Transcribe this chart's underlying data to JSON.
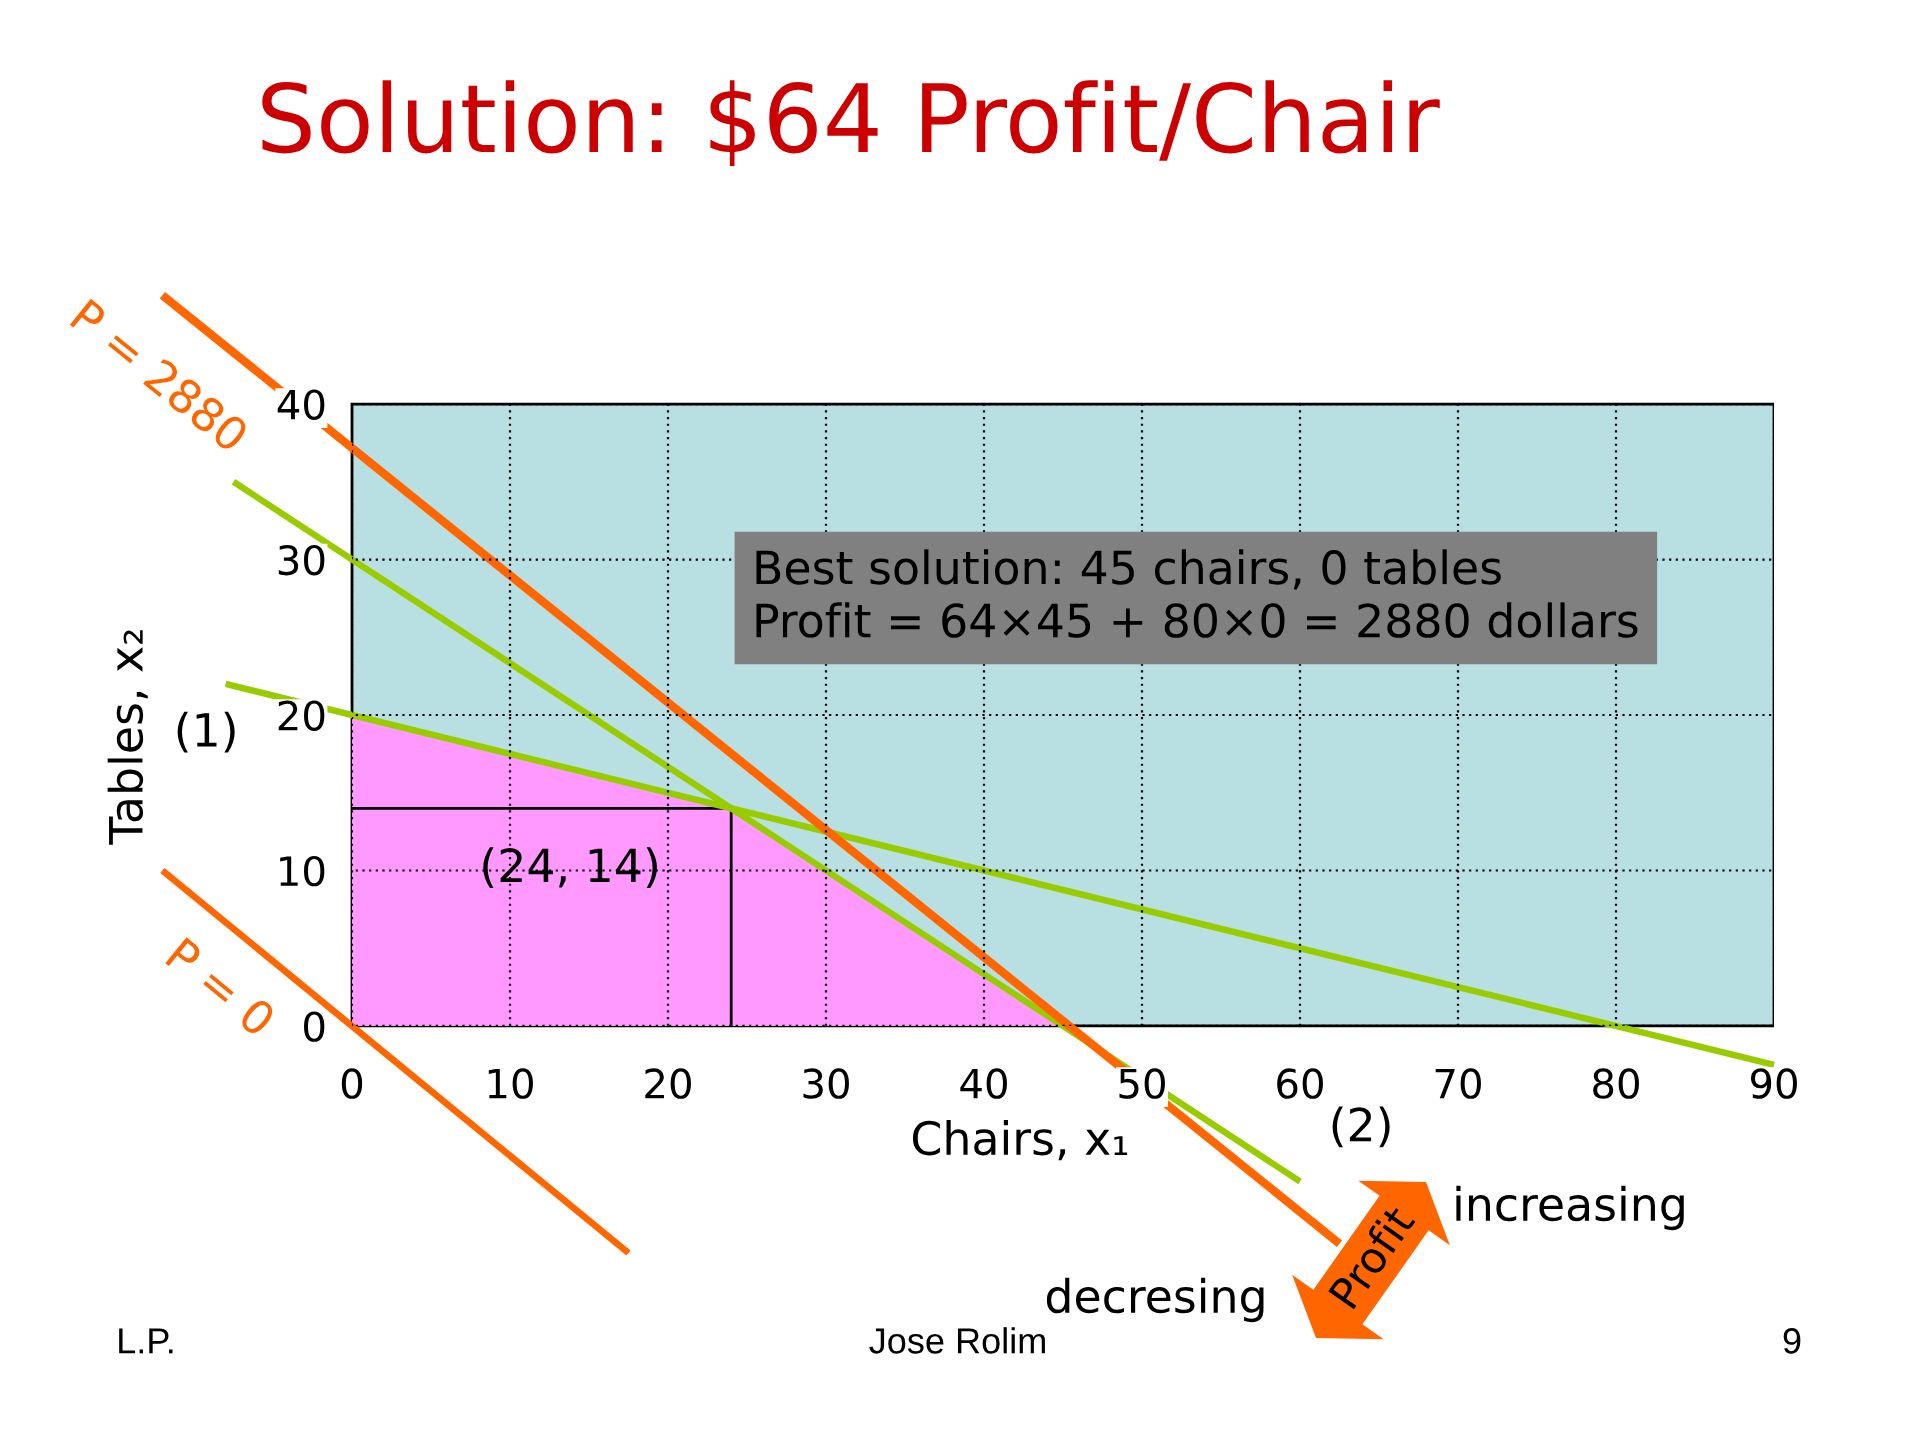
{
  "chart_data": {
    "type": "line",
    "title": "Solution: $64 Profit/Chair",
    "xlabel": "Chairs, x₁",
    "ylabel": "Tables, x₂",
    "xlim": [
      -12,
      90
    ],
    "ylim": [
      -15,
      47
    ],
    "xticks": [
      0,
      10,
      20,
      30,
      40,
      50,
      60,
      70,
      80,
      90
    ],
    "yticks": [
      0,
      10,
      20,
      30,
      40
    ],
    "grid": true,
    "series": [
      {
        "type": "area",
        "color": "#ff99ff",
        "x": [
          0,
          24,
          45
        ],
        "values": [
          20,
          14,
          0
        ]
      },
      {
        "color": "#000000",
        "x": [
          0,
          24,
          24
        ],
        "values": [
          14,
          14,
          0
        ]
      },
      {
        "name": "(1)",
        "color": "#99cc00",
        "x": [
          -8,
          90
        ],
        "values": [
          22,
          -2.5
        ]
      },
      {
        "name": "(2)",
        "color": "#99cc00",
        "x": [
          -7.5,
          60
        ],
        "values": [
          35,
          -10
        ]
      },
      {
        "name": "P = 2880",
        "color": "#ff6600",
        "x": [
          -12,
          62.5
        ],
        "values": [
          47,
          -14
        ]
      },
      {
        "name": "P = 0",
        "color": "#ff6600",
        "x": [
          -12,
          17.5
        ],
        "values": [
          10,
          -14.6
        ]
      }
    ],
    "annotations": [
      {
        "text": "(24, 14)",
        "x": 24,
        "y": 14
      },
      "Best solution: 45 chairs, 0 tables\nProfit = 64×45 + 80×0 = 2880 dollars",
      "Profit",
      "increasing",
      "decresing",
      "L.P.",
      "Jose Rolim",
      "9"
    ]
  }
}
